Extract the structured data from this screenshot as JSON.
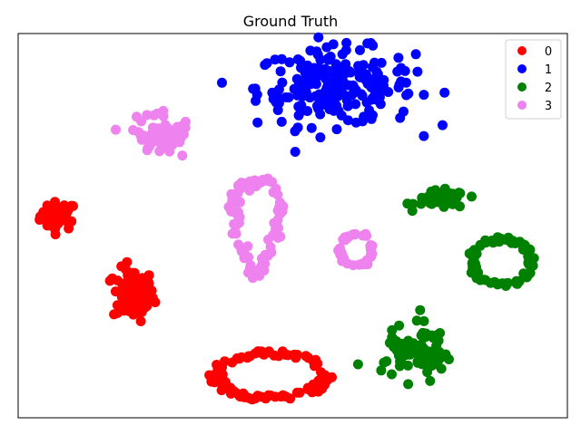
{
  "chart_data": {
    "type": "scatter",
    "title": "Ground Truth",
    "xlabel": "",
    "ylabel": "",
    "xlim": [
      0,
      100
    ],
    "ylim": [
      0,
      100
    ],
    "axis_ticks": false,
    "grid": false,
    "legend_position": "top-right",
    "series": [
      {
        "name": "0",
        "color": "#ff0000",
        "clusters": [
          {
            "shape": "blob",
            "center": [
              7.3,
              52.5
            ],
            "spread": [
              3.0,
              3.3
            ],
            "count": 45
          },
          {
            "shape": "blob",
            "center": [
              21.0,
              32.0
            ],
            "spread": [
              3.4,
              6.2
            ],
            "count": 85
          },
          {
            "shape": "ring",
            "center": [
              46.0,
              11.0
            ],
            "spread": [
              10.2,
              6.0
            ],
            "count": 110
          }
        ]
      },
      {
        "name": "1",
        "color": "#0000ff",
        "clusters": [
          {
            "shape": "blob",
            "center": [
              57.8,
              86.0
            ],
            "spread": [
              13.0,
              9.0
            ],
            "count": 220
          }
        ]
      },
      {
        "name": "2",
        "color": "#008000",
        "clusters": [
          {
            "shape": "blob",
            "center": [
              77.0,
              56.8
            ],
            "spread": [
              4.2,
              2.1
            ],
            "count": 55
          },
          {
            "shape": "ring",
            "center": [
              88.0,
              40.6
            ],
            "spread": [
              5.6,
              6.0
            ],
            "count": 85
          },
          {
            "shape": "blob",
            "center": [
              72.5,
              16.9
            ],
            "spread": [
              4.8,
              6.4
            ],
            "count": 90
          }
        ]
      },
      {
        "name": "3",
        "color": "#ee82ee",
        "clusters": [
          {
            "shape": "blob",
            "center": [
              26.4,
              74.0
            ],
            "spread": [
              5.5,
              5.0
            ],
            "count": 70
          },
          {
            "shape": "loop",
            "center": [
              43.5,
              49.5
            ],
            "spread": [
              6.0,
              13.5
            ],
            "count": 95
          },
          {
            "shape": "ring",
            "center": [
              61.5,
              43.7
            ],
            "spread": [
              3.0,
              4.5
            ],
            "count": 45
          }
        ]
      }
    ]
  }
}
